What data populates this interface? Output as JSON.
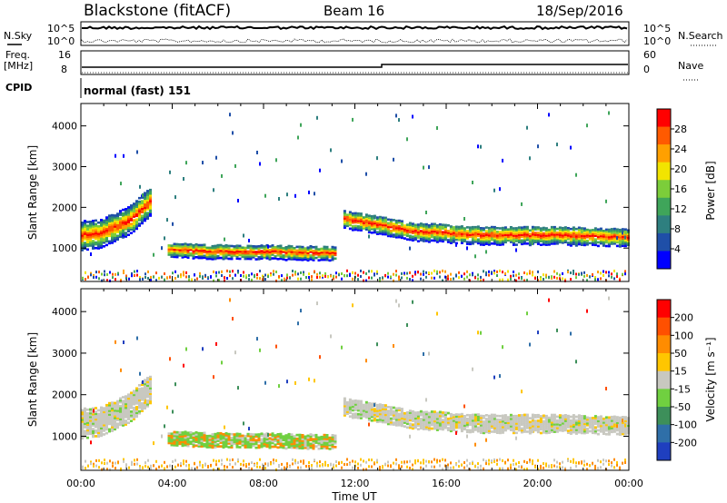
{
  "header": {
    "station": "Blackstone (fitACF)",
    "beam": "Beam 16",
    "date": "18/Sep/2016"
  },
  "noise_panel": {
    "left_label": "N.Sky",
    "left_ticks": [
      "10^5",
      "10^0"
    ],
    "right_label": "N.Search",
    "right_ticks": [
      "10^5",
      "10^0"
    ]
  },
  "freq_panel": {
    "left_label_1": "Freq.",
    "left_label_2": "[MHz]",
    "left_ticks": [
      "16",
      "8"
    ],
    "right_label": "Nave",
    "right_ticks": [
      "60",
      "0"
    ]
  },
  "cpid": {
    "label": "CPID",
    "value": "normal (fast) 151"
  },
  "x_axis": {
    "label": "Time UT",
    "ticks": [
      "00:00",
      "04:00",
      "08:00",
      "12:00",
      "16:00",
      "20:00",
      "00:00"
    ]
  },
  "colors": {
    "power_scale": [
      "#0000ff",
      "#1f4fa8",
      "#2e7f7f",
      "#3fa55a",
      "#7ccd3a",
      "#f2e400",
      "#ffa000",
      "#ff5a00",
      "#ff0000"
    ],
    "velocity_scale": [
      "#1f3fbf",
      "#2f6fa8",
      "#3d8f5a",
      "#70d040",
      "#c8c8c0",
      "#ffc600",
      "#ff8c00",
      "#ff5000",
      "#ff0000"
    ]
  },
  "chart_data": [
    {
      "type": "heatmap",
      "panel": "power",
      "ylabel": "Slant Range [km]",
      "xlabel": "Time UT",
      "x_ticks": [
        "00:00",
        "04:00",
        "08:00",
        "12:00",
        "16:00",
        "20:00",
        "00:00"
      ],
      "y_ticks": [
        1000,
        2000,
        3000,
        4000
      ],
      "ylim": [
        180,
        4550
      ],
      "colorbar": {
        "label": "Power [dB]",
        "ticks": [
          "28",
          "24",
          "20",
          "16",
          "12",
          "8",
          "4"
        ]
      },
      "echo_bands": [
        {
          "t_start_hr": 0.0,
          "t_end_hr": 3.0,
          "center_km": [
            1300,
            1350,
            1500,
            1750,
            2150
          ],
          "width_km": 700
        },
        {
          "t_start_hr": 3.8,
          "t_end_hr": 11.2,
          "center_km": [
            950,
            900,
            900,
            880,
            860
          ],
          "width_km": 350
        },
        {
          "t_start_hr": 11.5,
          "t_end_hr": 24.0,
          "center_km": [
            1700,
            1400,
            1300,
            1300,
            1250
          ],
          "width_km": 450
        }
      ]
    },
    {
      "type": "heatmap",
      "panel": "velocity",
      "ylabel": "Slant Range [km]",
      "xlabel": "Time UT",
      "x_ticks": [
        "00:00",
        "04:00",
        "08:00",
        "12:00",
        "16:00",
        "20:00",
        "00:00"
      ],
      "y_ticks": [
        1000,
        2000,
        3000,
        4000
      ],
      "ylim": [
        180,
        4550
      ],
      "colorbar": {
        "label": "Velocity [m s⁻¹]",
        "ticks": [
          "200",
          "100",
          "50",
          "15",
          "-15",
          "-50",
          "-100",
          "-200"
        ]
      }
    }
  ]
}
